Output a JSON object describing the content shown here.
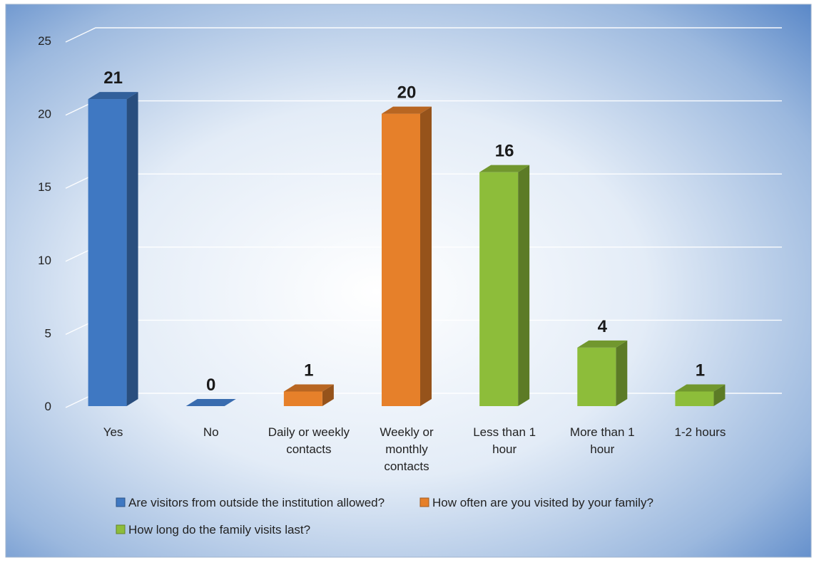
{
  "colors": {
    "blue": "#3f78c2",
    "orange": "#e6802a",
    "green": "#8dbd3a"
  },
  "chart_data": {
    "type": "bar",
    "title": "",
    "xlabel": "",
    "ylabel": "",
    "ylim": [
      0,
      25
    ],
    "yticks": [
      "0",
      "5",
      "10",
      "15",
      "20",
      "25"
    ],
    "grid": true,
    "legend_position": "bottom",
    "categories": [
      [
        "Yes"
      ],
      [
        "No"
      ],
      [
        "Daily or weekly",
        "contacts"
      ],
      [
        "Weekly or",
        "monthly",
        "contacts"
      ],
      [
        "Less than 1",
        "hour"
      ],
      [
        "More than 1",
        "hour"
      ],
      [
        "1-2 hours"
      ]
    ],
    "values": [
      21,
      0,
      1,
      20,
      16,
      4,
      1
    ],
    "data_labels": [
      "21",
      "0",
      "1",
      "20",
      "16",
      "4",
      "1"
    ],
    "bar_series": [
      0,
      0,
      1,
      1,
      2,
      2,
      2
    ],
    "series": [
      {
        "name": "Are visitors from outside the institution allowed?",
        "color": "#3f78c2"
      },
      {
        "name": "How often are you visited by your family?",
        "color": "#e6802a"
      },
      {
        "name": "How long do the family visits last?",
        "color": "#8dbd3a"
      }
    ]
  }
}
